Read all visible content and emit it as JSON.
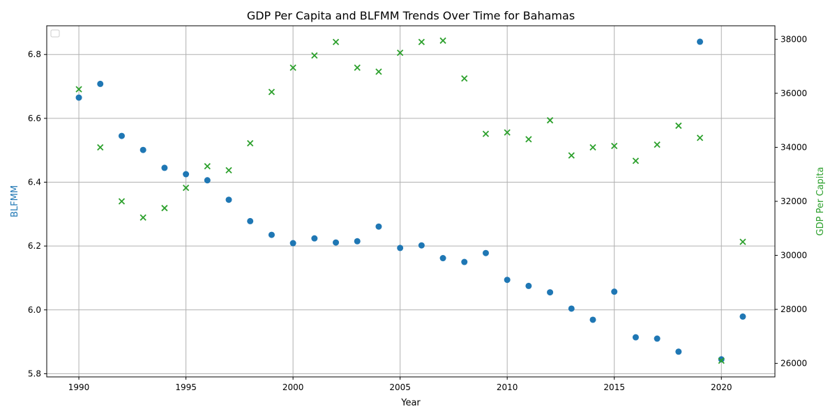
{
  "chart_data": {
    "type": "scatter",
    "title": "GDP Per Capita and BLFMM Trends Over Time for Bahamas",
    "xlabel": "Year",
    "ylabel_left": "BLFMM",
    "ylabel_right": "GDP Per Capita",
    "xlim": [
      1988.5,
      2022.5
    ],
    "ylim_left": [
      5.79,
      6.89
    ],
    "ylim_right": [
      25500,
      38500
    ],
    "x_ticks": [
      "1990",
      "1995",
      "2000",
      "2005",
      "2010",
      "2015",
      "2020"
    ],
    "y_ticks_left": [
      "5.8",
      "6.0",
      "6.2",
      "6.4",
      "6.6",
      "6.8"
    ],
    "y_ticks_right": [
      "26000",
      "28000",
      "30000",
      "32000",
      "34000",
      "36000",
      "38000"
    ],
    "grid": true,
    "legend": "top-left (empty)",
    "series": [
      {
        "axis": "left",
        "marker": "circle",
        "color": "#1f77b4",
        "x": [
          1990,
          1991,
          1992,
          1993,
          1994,
          1995,
          1996,
          1997,
          1998,
          1999,
          2000,
          2001,
          2002,
          2003,
          2004,
          2005,
          2006,
          2007,
          2008,
          2009,
          2010,
          2011,
          2012,
          2013,
          2014,
          2015,
          2016,
          2017,
          2018,
          2019,
          2020,
          2021
        ],
        "y": [
          6.665,
          6.708,
          6.545,
          6.501,
          6.445,
          6.425,
          6.406,
          6.345,
          6.278,
          6.235,
          6.209,
          6.224,
          6.211,
          6.215,
          6.261,
          6.194,
          6.202,
          6.162,
          6.15,
          6.178,
          6.094,
          6.075,
          6.055,
          6.004,
          5.969,
          6.057,
          5.914,
          5.91,
          5.869,
          6.84,
          5.845,
          5.979
        ]
      },
      {
        "axis": "right",
        "marker": "x",
        "color": "#2ca02c",
        "x": [
          1990,
          1991,
          1992,
          1993,
          1994,
          1995,
          1996,
          1997,
          1998,
          1999,
          2000,
          2001,
          2002,
          2003,
          2004,
          2005,
          2006,
          2007,
          2008,
          2009,
          2010,
          2011,
          2012,
          2013,
          2014,
          2015,
          2016,
          2017,
          2018,
          2019,
          2020,
          2021
        ],
        "y": [
          36150,
          34000,
          32000,
          31400,
          31750,
          32500,
          33300,
          33150,
          34150,
          36050,
          36950,
          37400,
          37900,
          36950,
          36800,
          37500,
          37900,
          37950,
          36550,
          34500,
          34550,
          34300,
          35000,
          33700,
          34000,
          34050,
          33500,
          34100,
          34800,
          34350,
          26100,
          30500
        ]
      }
    ]
  }
}
